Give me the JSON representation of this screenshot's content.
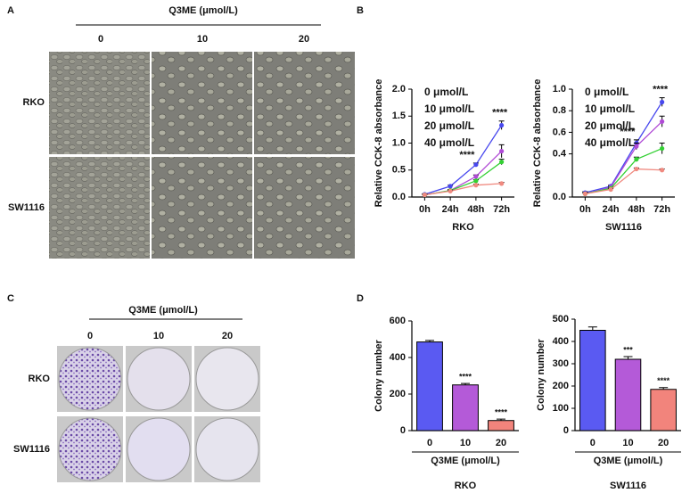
{
  "panel_labels": [
    "A",
    "B",
    "C",
    "D"
  ],
  "image_panels": [
    {
      "header": "Q3ME (μmol/L)",
      "columns": [
        "0",
        "10",
        "20"
      ],
      "rows": [
        "RKO",
        "SW1116"
      ]
    },
    {
      "header": "Q3ME (μmol/L)",
      "columns": [
        "0",
        "10",
        "20"
      ],
      "rows": [
        "RKO",
        "SW1116"
      ]
    }
  ],
  "chart_data": [
    {
      "type": "line",
      "y_label": "Relative CCK-8 absorbance",
      "x_label": "RKO",
      "categories": [
        "0h",
        "24h",
        "48h",
        "72h"
      ],
      "ylim": [
        0,
        2.0
      ],
      "yticks": [
        {
          "value": 0,
          "label": "0.0"
        },
        0.5,
        {
          "value": 1,
          "label": "1.0"
        },
        1.5,
        {
          "value": 2,
          "label": "2.0"
        }
      ],
      "annotations": [
        null,
        null,
        "****",
        "****"
      ],
      "series": [
        {
          "name": "0 μmol/L",
          "color": "#4848ee",
          "values": [
            0.05,
            0.2,
            0.6,
            1.33
          ],
          "errors": [
            0.01,
            0.02,
            0.03,
            0.08
          ]
        },
        {
          "name": "10 μmol/L",
          "color": "#b04ad6",
          "values": [
            0.04,
            0.12,
            0.38,
            0.85
          ],
          "errors": [
            0.01,
            0.02,
            0.03,
            0.12
          ]
        },
        {
          "name": "20 μmol/L",
          "color": "#33d033",
          "values": [
            0.04,
            0.12,
            0.3,
            0.65
          ],
          "errors": [
            0.01,
            0.01,
            0.02,
            0.05
          ]
        },
        {
          "name": "40 μmol/L",
          "color": "#f08a80",
          "values": [
            0.04,
            0.11,
            0.22,
            0.25
          ],
          "errors": [
            0.01,
            0.01,
            0.02,
            0.02
          ]
        }
      ]
    },
    {
      "type": "line",
      "y_label": "Relative CCK-8 absorbance",
      "x_label": "SW1116",
      "categories": [
        "0h",
        "24h",
        "48h",
        "72h"
      ],
      "ylim": [
        0,
        1.0
      ],
      "yticks": [
        {
          "value": 0,
          "label": "0.0"
        },
        0.4,
        0.6,
        0.8,
        {
          "value": 1,
          "label": "1.0"
        }
      ],
      "annotations": [
        null,
        null,
        "****",
        "****"
      ],
      "series": [
        {
          "name": "0 μmol/L",
          "color": "#4848ee",
          "values": [
            0.04,
            0.1,
            0.5,
            0.88
          ],
          "errors": [
            0.01,
            0.01,
            0.03,
            0.04
          ]
        },
        {
          "name": "10 μmol/L",
          "color": "#b04ad6",
          "values": [
            0.03,
            0.09,
            0.47,
            0.7
          ],
          "errors": [
            0.01,
            0.01,
            0.03,
            0.05
          ]
        },
        {
          "name": "20 μmol/L",
          "color": "#33d033",
          "values": [
            0.03,
            0.08,
            0.35,
            0.45
          ],
          "errors": [
            0.01,
            0.01,
            0.02,
            0.05
          ]
        },
        {
          "name": "40 μmol/L",
          "color": "#f08a80",
          "values": [
            0.03,
            0.07,
            0.26,
            0.25
          ],
          "errors": [
            0.01,
            0.01,
            0.01,
            0.01
          ]
        }
      ]
    },
    {
      "type": "bar",
      "y_label": "Colony number",
      "x_label": "Q3ME (μmol/L)",
      "caption": "RKO",
      "categories": [
        "0",
        "10",
        "20"
      ],
      "values": [
        485,
        250,
        55
      ],
      "errors": [
        8,
        8,
        8
      ],
      "colors": [
        "#5a5af2",
        "#b45ad8",
        "#f2847c"
      ],
      "annotations": [
        null,
        "****",
        "****"
      ],
      "ylim": [
        0,
        600
      ],
      "yticks": [
        0,
        200,
        400,
        600
      ]
    },
    {
      "type": "bar",
      "y_label": "Colony number",
      "x_label": "Q3ME (μmol/L)",
      "caption": "SW1116",
      "categories": [
        "0",
        "10",
        "20"
      ],
      "values": [
        450,
        320,
        185
      ],
      "errors": [
        15,
        12,
        8
      ],
      "colors": [
        "#5a5af2",
        "#b45ad8",
        "#f2847c"
      ],
      "annotations": [
        null,
        "***",
        "****"
      ],
      "ylim": [
        0,
        500
      ],
      "yticks": [
        0,
        100,
        200,
        300,
        400,
        500
      ]
    }
  ]
}
